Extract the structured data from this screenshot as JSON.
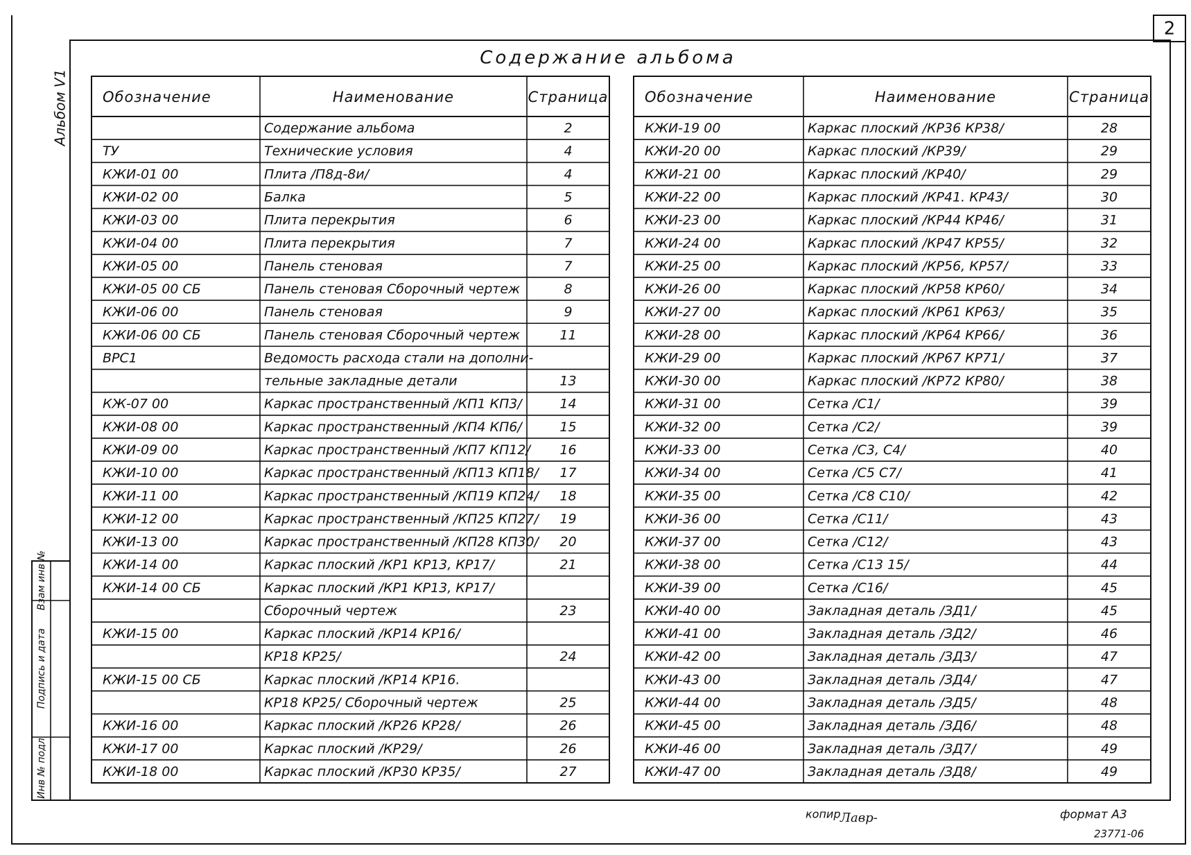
{
  "header": {
    "title": "Содержание альбома",
    "sheet": "2",
    "album": "Альбом V1"
  },
  "stamp": [
    "Инв № подл",
    "Подпись и дата",
    "Взам инв №"
  ],
  "left_table": {
    "header": [
      "Обозначение",
      "Наименование",
      "Страница"
    ],
    "rows": [
      [
        null,
        "Содержание альбома",
        "2"
      ],
      [
        "ТУ",
        "Технические условия",
        "4"
      ],
      [
        "КЖИ-01 00",
        "Плита /П8д-8и/",
        "4"
      ],
      [
        "КЖИ-02 00",
        "Балка",
        "5"
      ],
      [
        "КЖИ-03 00",
        "Плита перекрытия",
        "6"
      ],
      [
        "КЖИ-04 00",
        "Плита перекрытия",
        "7"
      ],
      [
        "КЖИ-05 00",
        "Панель стеновая",
        "7"
      ],
      [
        "КЖИ-05 00 СБ",
        "Панель стеновая Сборочный чертеж",
        "8"
      ],
      [
        "КЖИ-06 00",
        "Панель стеновая",
        "9"
      ],
      [
        "КЖИ-06 00 СБ",
        "Панель стеновая Сборочный чертеж",
        "11"
      ],
      [
        "ВРС1",
        "Ведомость расхода стали на дополни-",
        null
      ],
      [
        null,
        "тельные закладные детали",
        "13"
      ],
      [
        "КЖ-07 00",
        "Каркас пространственный /КП1 КП3/",
        "14"
      ],
      [
        "КЖИ-08 00",
        "Каркас пространственный /КП4 КП6/",
        "15"
      ],
      [
        "КЖИ-09 00",
        "Каркас пространственный /КП7 КП12/",
        "16"
      ],
      [
        "КЖИ-10 00",
        "Каркас пространственный /КП13 КП18/",
        "17"
      ],
      [
        "КЖИ-11 00",
        "Каркас пространственный /КП19 КП24/",
        "18"
      ],
      [
        "КЖИ-12 00",
        "Каркас пространственный /КП25 КП27/",
        "19"
      ],
      [
        "КЖИ-13 00",
        "Каркас пространственный /КП28 КП30/",
        "20"
      ],
      [
        "КЖИ-14 00",
        "Каркас плоский /КР1 КР13, КР17/",
        "21"
      ],
      [
        "КЖИ-14 00 СБ",
        "Каркас плоский /КР1 КР13, КР17/",
        null
      ],
      [
        null,
        "Сборочный чертеж",
        "23"
      ],
      [
        "КЖИ-15 00",
        "Каркас плоский /КР14 КР16/",
        null
      ],
      [
        null,
        "КР18 КР25/",
        "24"
      ],
      [
        "КЖИ-15 00 СБ",
        "Каркас плоский /КР14 КР16.",
        null
      ],
      [
        null,
        "КР18 КР25/ Сборочный чертеж",
        "25"
      ],
      [
        "КЖИ-16 00",
        "Каркас плоский /КР26 КР28/",
        "26"
      ],
      [
        "КЖИ-17 00",
        "Каркас плоский /КР29/",
        "26"
      ],
      [
        "КЖИ-18 00",
        "Каркас плоский /КР30 КР35/",
        "27"
      ]
    ]
  },
  "right_table": {
    "header": [
      "Обозначение",
      "Наименование",
      "Страница"
    ],
    "rows": [
      [
        "КЖИ-19 00",
        "Каркас плоский /КР36 КР38/",
        "28"
      ],
      [
        "КЖИ-20 00",
        "Каркас плоский /КР39/",
        "29"
      ],
      [
        "КЖИ-21 00",
        "Каркас плоский /КР40/",
        "29"
      ],
      [
        "КЖИ-22 00",
        "Каркас плоский /КР41. КР43/",
        "30"
      ],
      [
        "КЖИ-23 00",
        "Каркас плоский /КР44 КР46/",
        "31"
      ],
      [
        "КЖИ-24 00",
        "Каркас плоский /КР47 КР55/",
        "32"
      ],
      [
        "КЖИ-25 00",
        "Каркас плоский /КР56, КР57/",
        "33"
      ],
      [
        "КЖИ-26 00",
        "Каркас плоский /КР58 КР60/",
        "34"
      ],
      [
        "КЖИ-27 00",
        "Каркас плоский /КР61 КР63/",
        "35"
      ],
      [
        "КЖИ-28 00",
        "Каркас плоский /КР64 КР66/",
        "36"
      ],
      [
        "КЖИ-29 00",
        "Каркас плоский /КР67 КР71/",
        "37"
      ],
      [
        "КЖИ-30 00",
        "Каркас плоский /КР72 КР80/",
        "38"
      ],
      [
        "КЖИ-31 00",
        "Сетка /С1/",
        "39"
      ],
      [
        "КЖИ-32 00",
        "Сетка /С2/",
        "39"
      ],
      [
        "КЖИ-33 00",
        "Сетка /С3, С4/",
        "40"
      ],
      [
        "КЖИ-34 00",
        "Сетка /С5 С7/",
        "41"
      ],
      [
        "КЖИ-35 00",
        "Сетка /С8 С10/",
        "42"
      ],
      [
        "КЖИ-36 00",
        "Сетка /С11/",
        "43"
      ],
      [
        "КЖИ-37 00",
        "Сетка /С12/",
        "43"
      ],
      [
        "КЖИ-38 00",
        "Сетка /С13 15/",
        "44"
      ],
      [
        "КЖИ-39 00",
        "Сетка /С16/",
        "45"
      ],
      [
        "КЖИ-40 00",
        "Закладная деталь /ЗД1/",
        "45"
      ],
      [
        "КЖИ-41 00",
        "Закладная деталь /ЗД2/",
        "46"
      ],
      [
        "КЖИ-42 00",
        "Закладная деталь /ЗД3/",
        "47"
      ],
      [
        "КЖИ-43 00",
        "Закладная деталь /ЗД4/",
        "47"
      ],
      [
        "КЖИ-44 00",
        "Закладная деталь /ЗД5/",
        "48"
      ],
      [
        "КЖИ-45 00",
        "Закладная деталь /ЗД6/",
        "48"
      ],
      [
        "КЖИ-46 00",
        "Закладная деталь /ЗД7/",
        "49"
      ],
      [
        "КЖИ-47 00",
        "Закладная деталь /ЗД8/",
        "49"
      ]
    ]
  },
  "footer": {
    "copy": "копир",
    "signature": "Лавр-",
    "format": "формат А3",
    "code": "23771-06"
  }
}
